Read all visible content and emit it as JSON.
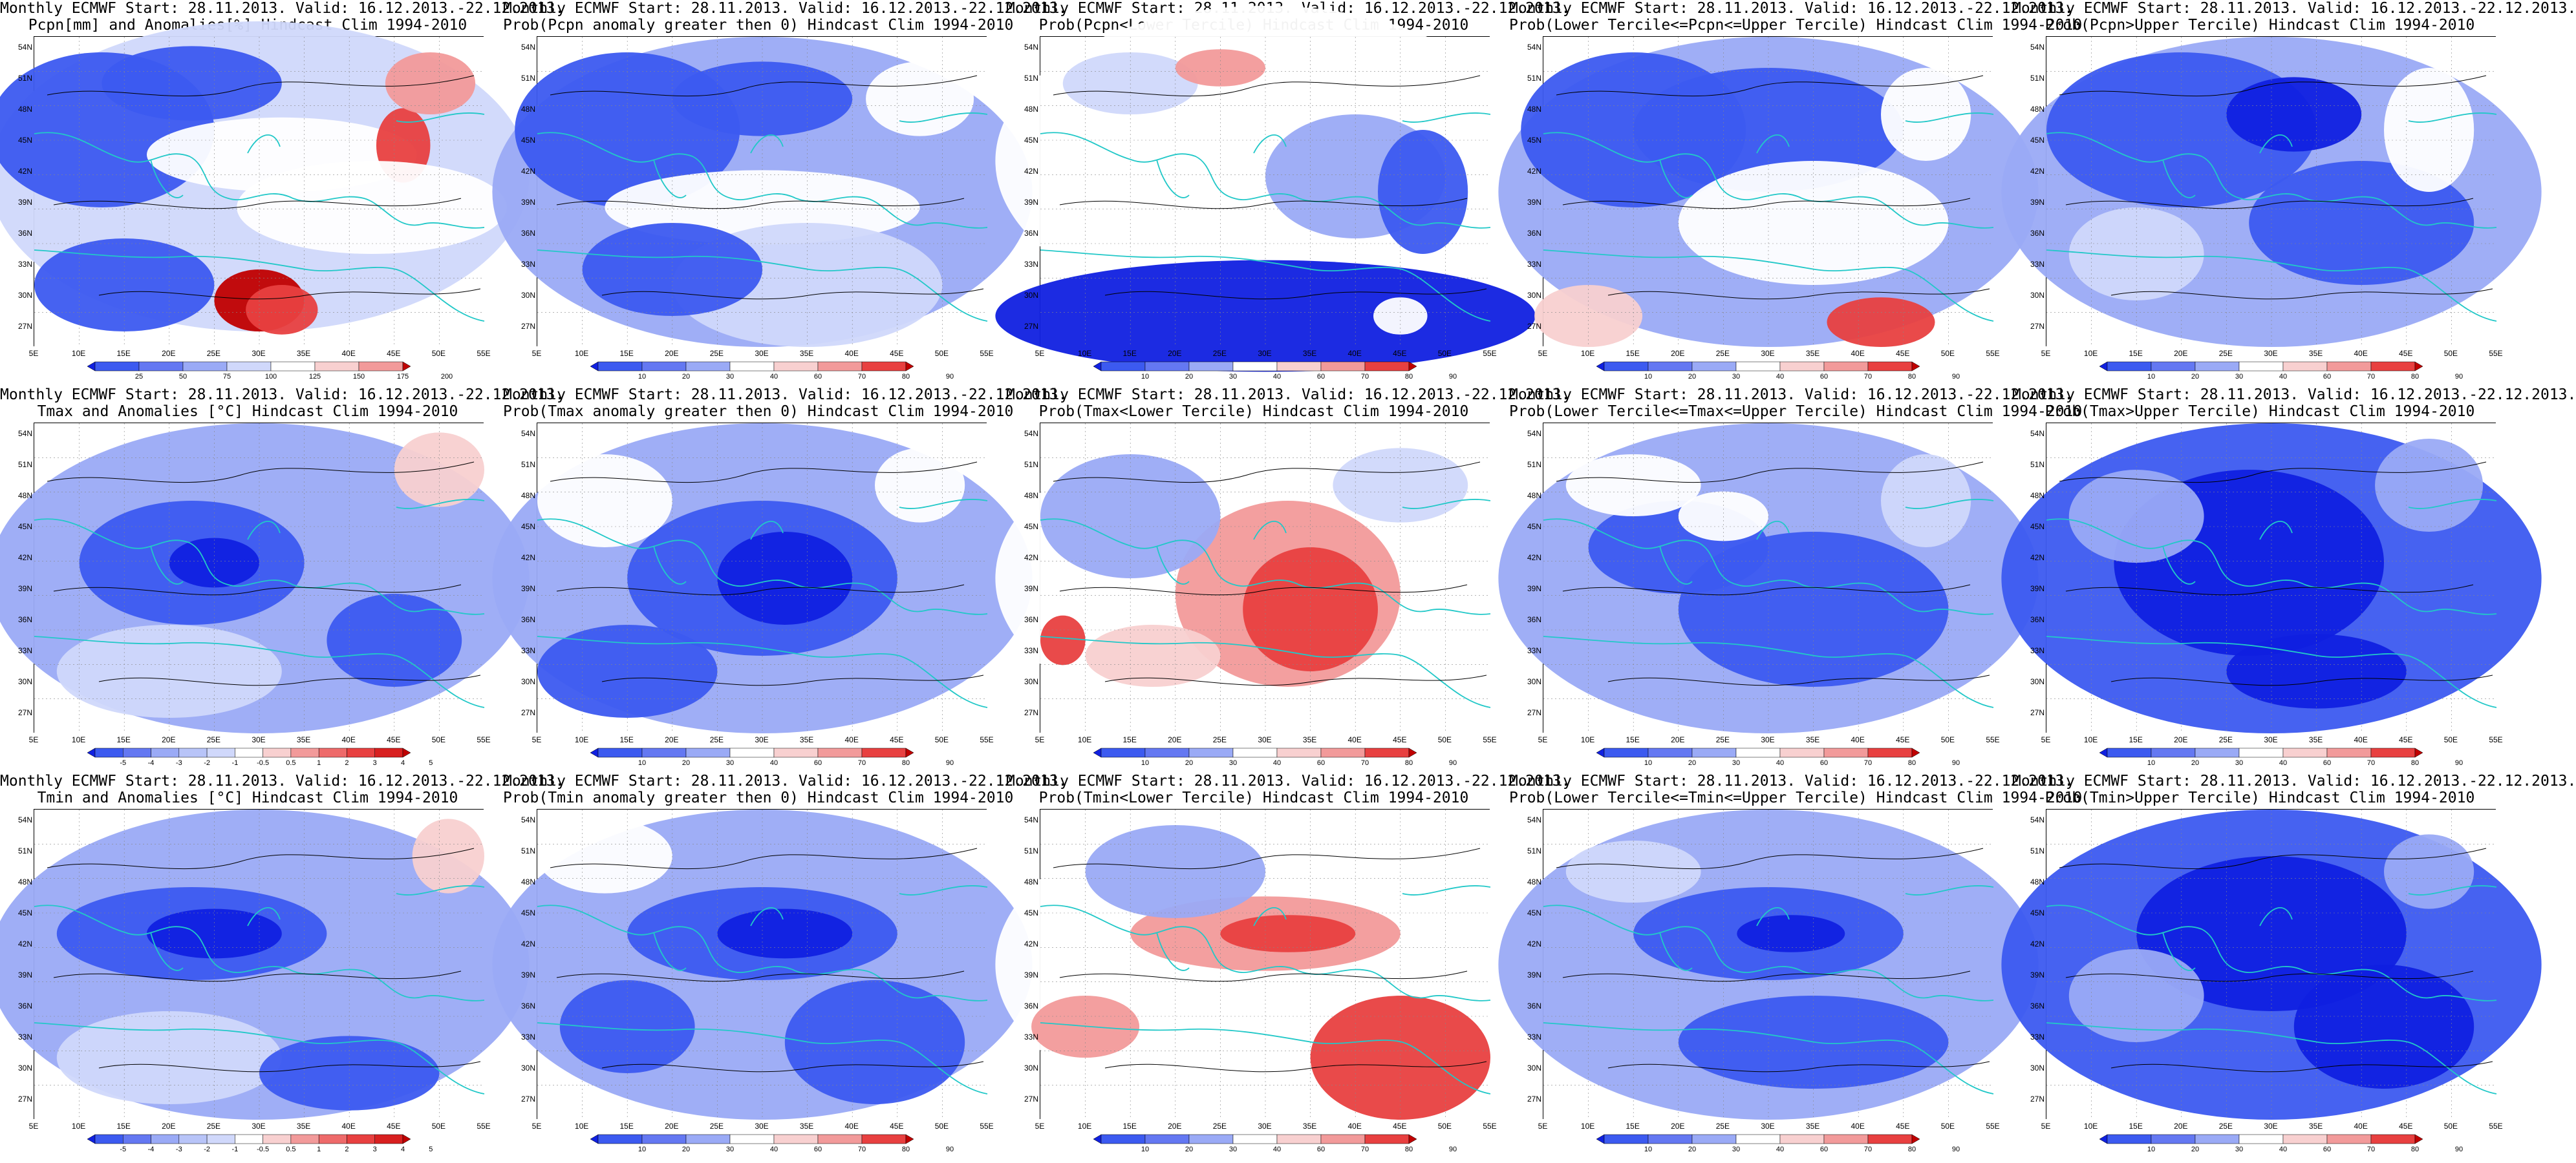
{
  "map_grid": {
    "lat_labels": [
      "54N",
      "51N",
      "48N",
      "45N",
      "42N",
      "39N",
      "36N",
      "33N",
      "30N",
      "27N"
    ],
    "lon_labels": [
      "5E",
      "10E",
      "15E",
      "20E",
      "25E",
      "30E",
      "35E",
      "40E",
      "45E",
      "50E",
      "55E"
    ]
  },
  "colors": {
    "deep_blue": "#1020e0",
    "mid_blue": "#3c5af0",
    "light_blue": "#9aaaf6",
    "pale_blue": "#d0d8fb",
    "white": "#ffffff",
    "pale_red": "#f8d0d0",
    "light_red": "#f29a9a",
    "mid_red": "#e84040",
    "deep_red": "#c00000",
    "coastline": "#22c8c8",
    "contour": "#000000"
  },
  "legends": {
    "pcpn_anom": [
      "25",
      "50",
      "75",
      "100",
      "125",
      "150",
      "175",
      "200"
    ],
    "temp_anom": [
      "-5",
      "-4",
      "-3",
      "-2",
      "-1",
      "-0.5",
      "0.5",
      "1",
      "2",
      "3",
      "4",
      "5"
    ],
    "prob": [
      "10",
      "20",
      "30",
      "40",
      "60",
      "70",
      "80",
      "90"
    ]
  },
  "panels": [
    {
      "line1": "Monthly ECMWF Start: 28.11.2013. Valid: 16.12.2013.-22.12.2013.",
      "line2": "Pcpn[mm] and Anomalies[%] Hindcast Clim 1994-2010",
      "legend": "pcpn_anom",
      "pattern": 0
    },
    {
      "line1": "Monthly ECMWF Start: 28.11.2013. Valid: 16.12.2013.-22.12.2013.",
      "line2": "Prob(Pcpn anomaly greater then 0) Hindcast Clim 1994-2010",
      "legend": "prob",
      "pattern": 1
    },
    {
      "line1": "Monthly ECMWF Start: 28.11.2013. Valid: 16.12.2013.-22.12.2013.",
      "line2": "Prob(Pcpn<Lower Tercile) Hindcast Clim 1994-2010",
      "legend": "prob",
      "pattern": 2
    },
    {
      "line1": "Monthly ECMWF Start: 28.11.2013. Valid: 16.12.2013.-22.12.2013.",
      "line2": "Prob(Lower Tercile<=Pcpn<=Upper Tercile) Hindcast Clim 1994-2010",
      "legend": "prob",
      "pattern": 3
    },
    {
      "line1": "Monthly ECMWF Start: 28.11.2013. Valid: 16.12.2013.-22.12.2013.",
      "line2": "Prob(Pcpn>Upper Tercile) Hindcast Clim 1994-2010",
      "legend": "prob",
      "pattern": 4
    },
    {
      "line1": "Monthly ECMWF Start: 28.11.2013. Valid: 16.12.2013.-22.12.2013.",
      "line2": "Tmax and Anomalies [°C] Hindcast Clim 1994-2010",
      "legend": "temp_anom",
      "pattern": 5
    },
    {
      "line1": "Monthly ECMWF Start: 28.11.2013. Valid: 16.12.2013.-22.12.2013.",
      "line2": "Prob(Tmax anomaly greater then 0) Hindcast Clim 1994-2010",
      "legend": "prob",
      "pattern": 6
    },
    {
      "line1": "Monthly ECMWF Start: 28.11.2013. Valid: 16.12.2013.-22.12.2013.",
      "line2": "Prob(Tmax<Lower Tercile) Hindcast Clim 1994-2010",
      "legend": "prob",
      "pattern": 7
    },
    {
      "line1": "Monthly ECMWF Start: 28.11.2013. Valid: 16.12.2013.-22.12.2013.",
      "line2": "Prob(Lower Tercile<=Tmax<=Upper Tercile) Hindcast Clim 1994-2010",
      "legend": "prob",
      "pattern": 8
    },
    {
      "line1": "Monthly ECMWF Start: 28.11.2013. Valid: 16.12.2013.-22.12.2013.",
      "line2": "Prob(Tmax>Upper Tercile) Hindcast Clim 1994-2010",
      "legend": "prob",
      "pattern": 9
    },
    {
      "line1": "Monthly ECMWF Start: 28.11.2013. Valid: 16.12.2013.-22.12.2013.",
      "line2": "Tmin and Anomalies [°C] Hindcast Clim 1994-2010",
      "legend": "temp_anom",
      "pattern": 10
    },
    {
      "line1": "Monthly ECMWF Start: 28.11.2013. Valid: 16.12.2013.-22.12.2013.",
      "line2": "Prob(Tmin anomaly greater then 0) Hindcast Clim 1994-2010",
      "legend": "prob",
      "pattern": 11
    },
    {
      "line1": "Monthly ECMWF Start: 28.11.2013. Valid: 16.12.2013.-22.12.2013.",
      "line2": "Prob(Tmin<Lower Tercile) Hindcast Clim 1994-2010",
      "legend": "prob",
      "pattern": 12
    },
    {
      "line1": "Monthly ECMWF Start: 28.11.2013. Valid: 16.12.2013.-22.12.2013.",
      "line2": "Prob(Lower Tercile<=Tmin<=Upper Tercile) Hindcast Clim 1994-2010",
      "legend": "prob",
      "pattern": 13
    },
    {
      "line1": "Monthly ECMWF Start: 28.11.2013. Valid: 16.12.2013.-22.12.2013.",
      "line2": "Prob(Tmin>Upper Tercile) Hindcast Clim 1994-2010",
      "legend": "prob",
      "pattern": 14
    }
  ]
}
